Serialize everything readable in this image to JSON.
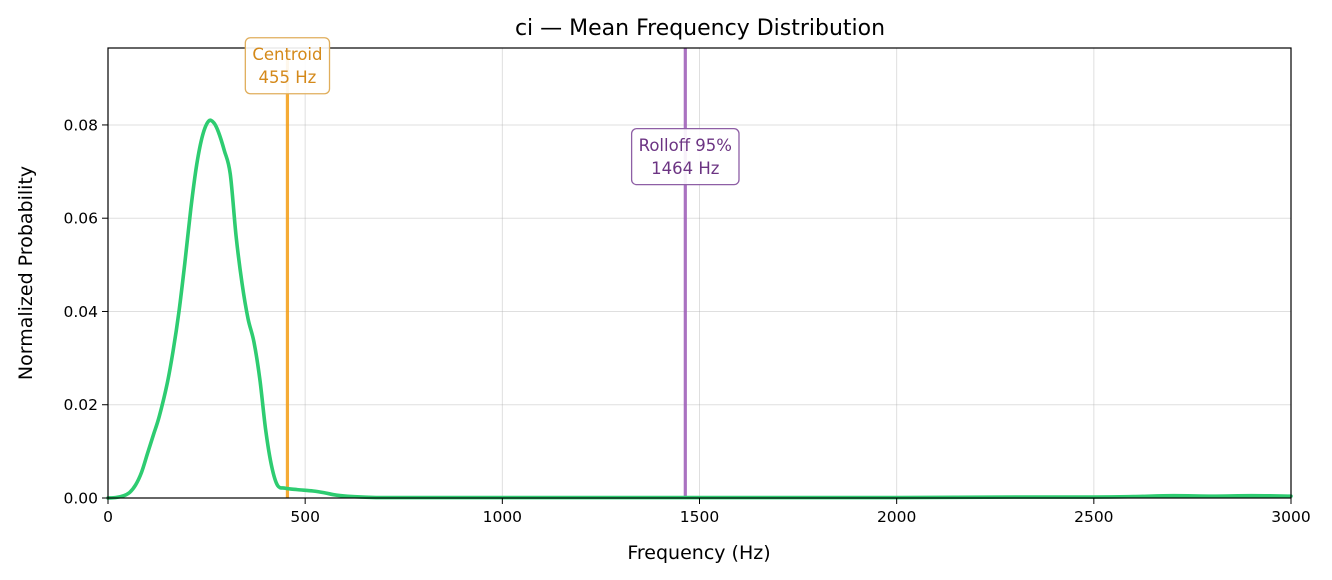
{
  "chart_data": {
    "type": "line",
    "title": "ci  —  Mean Frequency Distribution",
    "xlabel": "Frequency (Hz)",
    "ylabel": "Normalized Probability",
    "xlim": [
      0,
      3000
    ],
    "ylim": [
      0,
      0.0965
    ],
    "grid": true,
    "xticks": [
      0,
      500,
      1000,
      1500,
      2000,
      2500,
      3000
    ],
    "xtick_labels": [
      "0",
      "500",
      "1000",
      "1500",
      "2000",
      "2500",
      "3000"
    ],
    "yticks": [
      0,
      0.02,
      0.04,
      0.06,
      0.08
    ],
    "ytick_labels": [
      "0.00",
      "0.02",
      "0.04",
      "0.06",
      "0.08"
    ],
    "series": [
      {
        "color": "#2ecc71",
        "x": [
          0,
          20,
          40,
          55,
          70,
          85,
          100,
          115,
          130,
          150,
          165,
          180,
          195,
          210,
          225,
          240,
          255,
          268,
          280,
          295,
          310,
          325,
          340,
          355,
          370,
          385,
          400,
          415,
          430,
          450,
          480,
          520,
          550,
          580,
          620,
          680,
          800,
          1000,
          1500,
          2000,
          2300,
          2500,
          2600,
          2700,
          2800,
          2900,
          3000
        ],
        "y": [
          0.0,
          0.0001,
          0.0005,
          0.0012,
          0.0028,
          0.0055,
          0.0095,
          0.0135,
          0.0175,
          0.0245,
          0.0315,
          0.04,
          0.0505,
          0.062,
          0.0715,
          0.0778,
          0.0808,
          0.0805,
          0.0785,
          0.0745,
          0.0695,
          0.056,
          0.046,
          0.0385,
          0.0335,
          0.0255,
          0.0145,
          0.0068,
          0.0027,
          0.0021,
          0.0018,
          0.0015,
          0.0011,
          0.0006,
          0.0003,
          0.0001,
          0.0001,
          0.0001,
          0.0001,
          0.0001,
          0.0002,
          0.0002,
          0.0003,
          0.0005,
          0.0004,
          0.0005,
          0.0004
        ]
      }
    ],
    "vlines": [
      {
        "x": 455,
        "label": "Centroid\n455 Hz",
        "color": "#f39c12",
        "text_color": "#d4891a",
        "box_edge": "#e0ae5c",
        "label_y": 0.0927
      },
      {
        "x": 1464,
        "label": "Rolloff 95%\n1464 Hz",
        "color": "#9b59b6",
        "text_color": "#6c3483",
        "box_edge": "#8e5fa5",
        "label_y": 0.0732
      }
    ]
  }
}
